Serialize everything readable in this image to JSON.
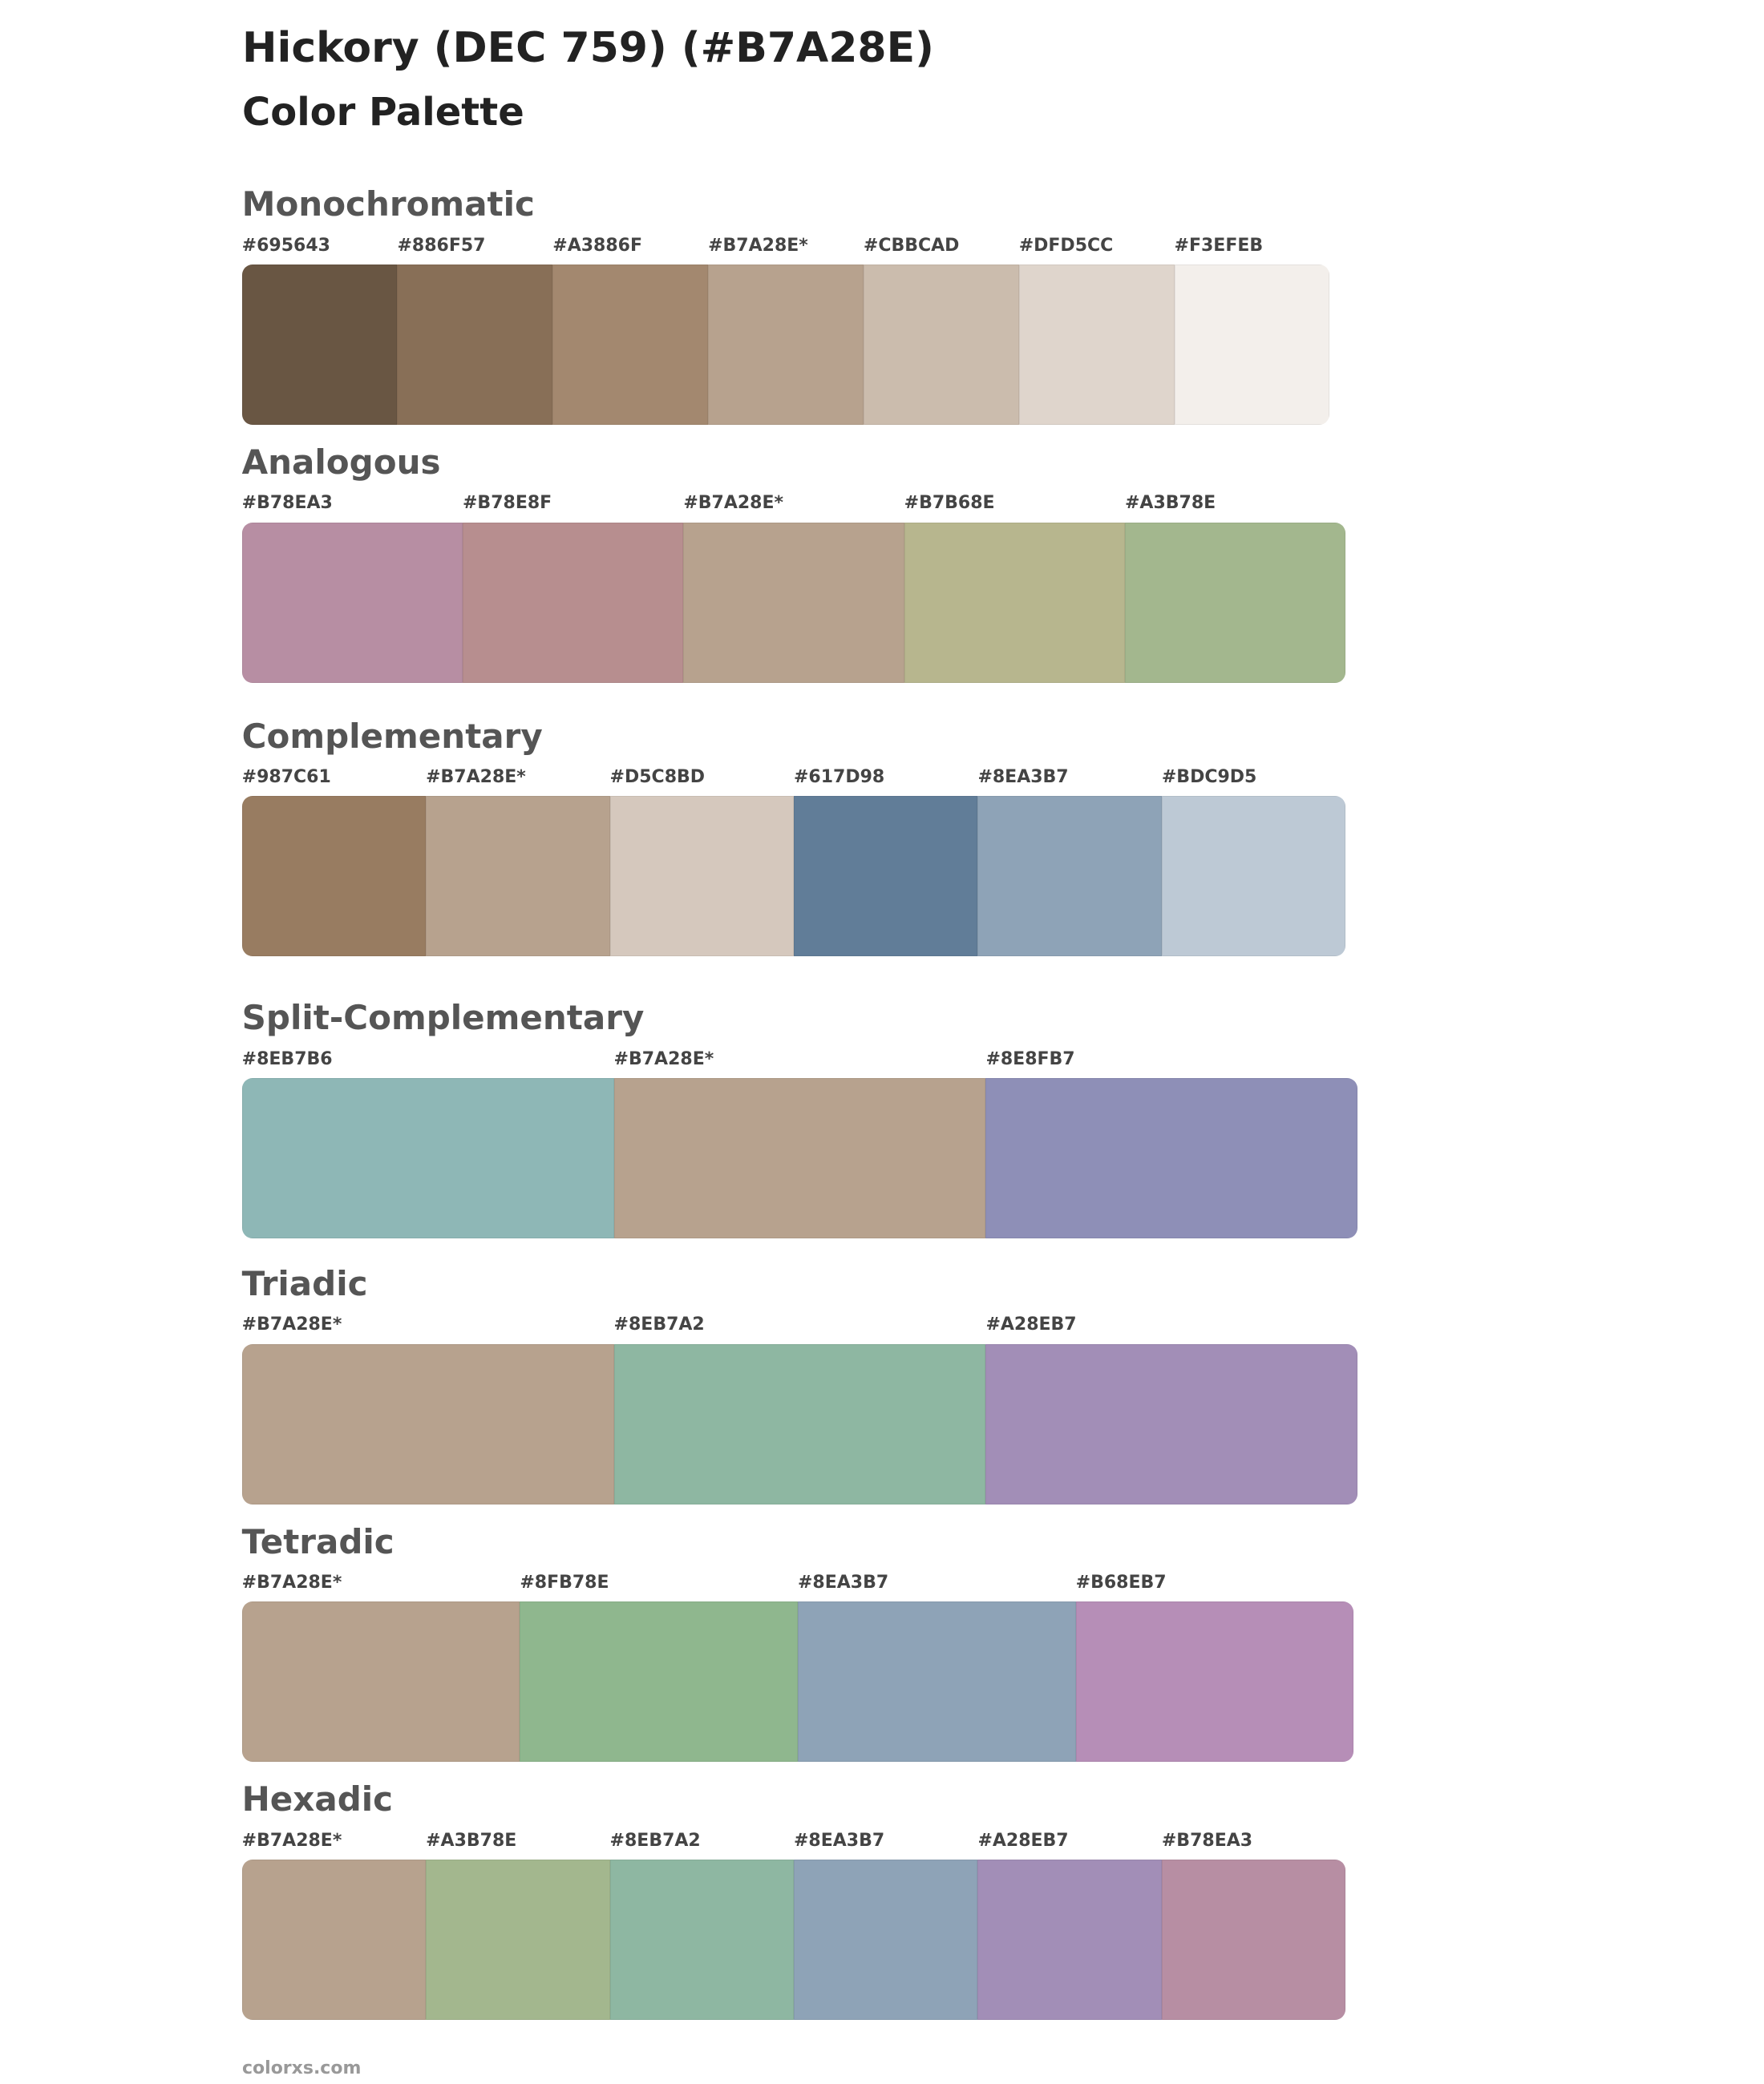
{
  "header": {
    "title": "Hickory (DEC 759) (#B7A28E)",
    "subtitle": "Color Palette"
  },
  "sections": [
    {
      "name": "Monochromatic",
      "swatches": [
        {
          "label": "#695643",
          "color": "#695643"
        },
        {
          "label": "#886F57",
          "color": "#886f57"
        },
        {
          "label": "#A3886F",
          "color": "#a3886f"
        },
        {
          "label": "#B7A28E*",
          "color": "#b7a28e"
        },
        {
          "label": "#CBBCAD",
          "color": "#cbbcad"
        },
        {
          "label": "#DFD5CC",
          "color": "#dfd5cc"
        },
        {
          "label": "#F3EFEB",
          "color": "#f3efeb"
        }
      ]
    },
    {
      "name": "Analogous",
      "swatches": [
        {
          "label": "#B78EA3",
          "color": "#b78ea3"
        },
        {
          "label": "#B78E8F",
          "color": "#b78e8f"
        },
        {
          "label": "#B7A28E*",
          "color": "#b7a28e"
        },
        {
          "label": "#B7B68E",
          "color": "#b7b68e"
        },
        {
          "label": "#A3B78E",
          "color": "#a3b78e"
        }
      ]
    },
    {
      "name": "Complementary",
      "swatches": [
        {
          "label": "#987C61",
          "color": "#987c61"
        },
        {
          "label": "#B7A28E*",
          "color": "#b7a28e"
        },
        {
          "label": "#D5C8BD",
          "color": "#d5c8bd"
        },
        {
          "label": "#617D98",
          "color": "#617d98"
        },
        {
          "label": "#8EA3B7",
          "color": "#8ea3b7"
        },
        {
          "label": "#BDC9D5",
          "color": "#bdc9d5"
        }
      ]
    },
    {
      "name": "Split-Complementary",
      "swatches": [
        {
          "label": "#8EB7B6",
          "color": "#8eb7b6"
        },
        {
          "label": "#B7A28E*",
          "color": "#b7a28e"
        },
        {
          "label": "#8E8FB7",
          "color": "#8e8fb7"
        }
      ]
    },
    {
      "name": "Triadic",
      "swatches": [
        {
          "label": "#B7A28E*",
          "color": "#b7a28e"
        },
        {
          "label": "#8EB7A2",
          "color": "#8eb7a2"
        },
        {
          "label": "#A28EB7",
          "color": "#a28eb7"
        }
      ]
    },
    {
      "name": "Tetradic",
      "swatches": [
        {
          "label": "#B7A28E*",
          "color": "#b7a28e"
        },
        {
          "label": "#8FB78E",
          "color": "#8fb78e"
        },
        {
          "label": "#8EA3B7",
          "color": "#8ea3b7"
        },
        {
          "label": "#B68EB7",
          "color": "#b68eb7"
        }
      ]
    },
    {
      "name": "Hexadic",
      "swatches": [
        {
          "label": "#B7A28E*",
          "color": "#b7a28e"
        },
        {
          "label": "#A3B78E",
          "color": "#a3b78e"
        },
        {
          "label": "#8EB7A2",
          "color": "#8eb7a2"
        },
        {
          "label": "#8EA3B7",
          "color": "#8ea3b7"
        },
        {
          "label": "#A28EB7",
          "color": "#a28eb7"
        },
        {
          "label": "#B78EA3",
          "color": "#b78ea3"
        }
      ]
    }
  ],
  "footer": "colorxs.com"
}
